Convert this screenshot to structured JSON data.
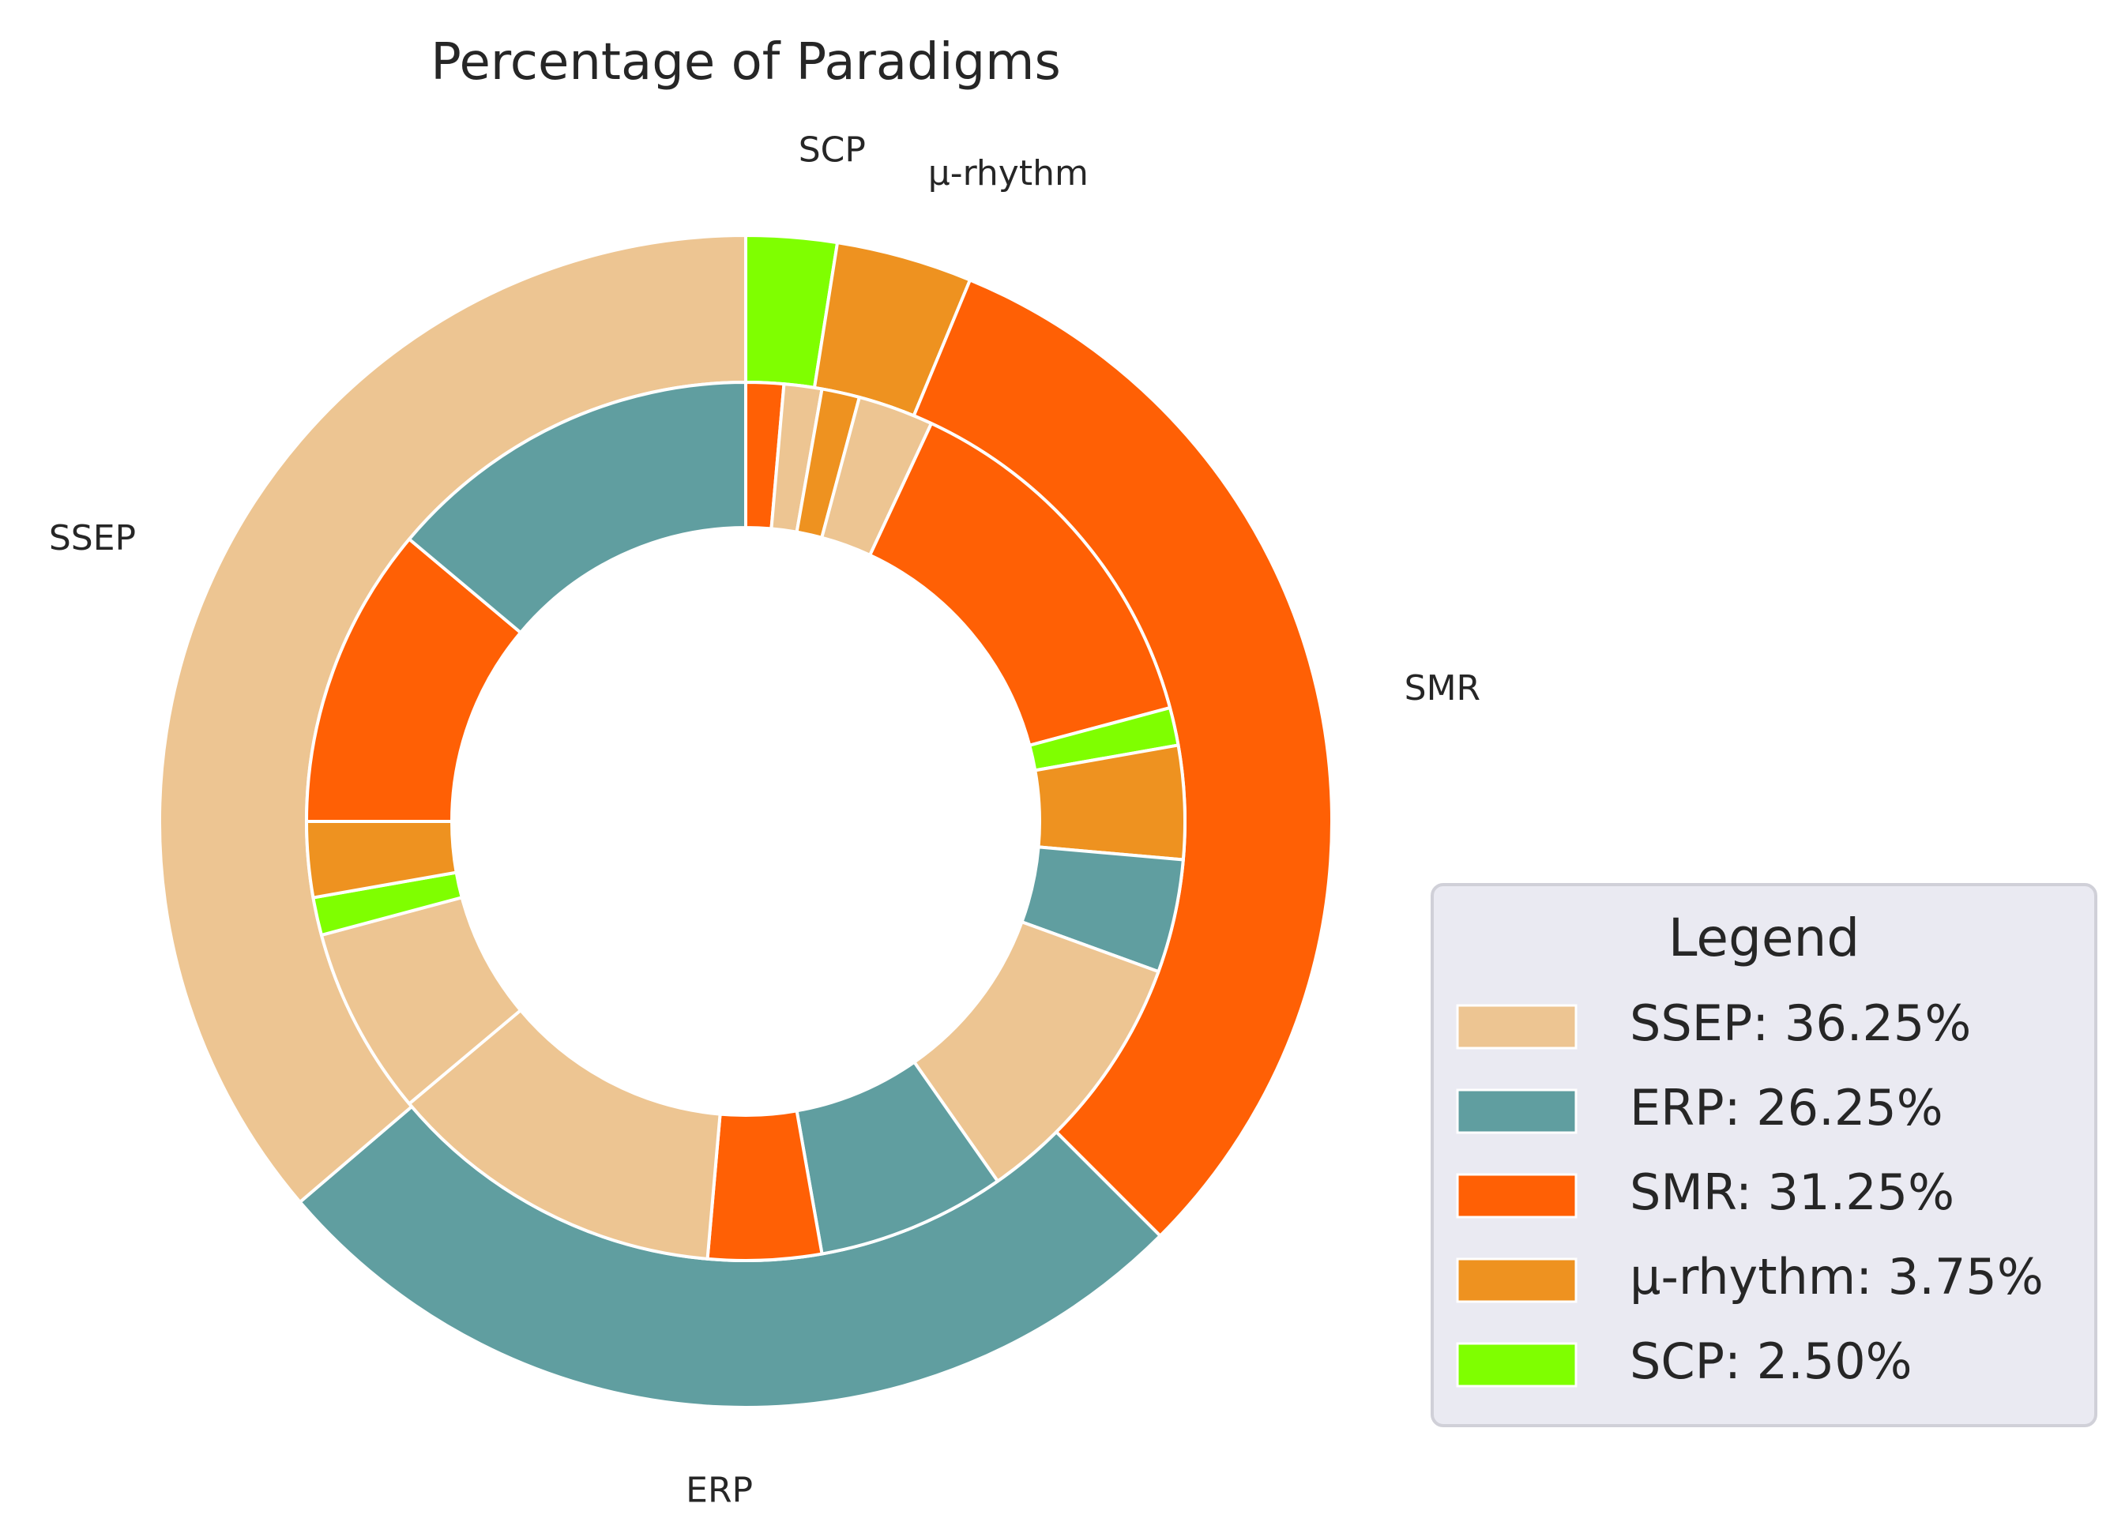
{
  "chart_data": {
    "type": "pie",
    "variant": "nested-donut",
    "title": "Percentage of Paradigms",
    "outer_ring": {
      "labels": [
        "SCP",
        "μ-rhythm",
        "SMR",
        "ERP",
        "SSEP"
      ],
      "values": [
        2.5,
        3.75,
        31.25,
        26.25,
        36.25
      ],
      "colors": [
        "#7fff00",
        "#ee9220",
        "#ff6005",
        "#609ea0",
        "#edc592"
      ]
    },
    "inner_ring": {
      "values": [
        1.25,
        1.25,
        1.25,
        2.5,
        12.5,
        1.25,
        3.75,
        3.75,
        8.75,
        6.25,
        3.75,
        11.25,
        6.25,
        1.25,
        2.5,
        10.0,
        12.5
      ],
      "colors": [
        "#ff6005",
        "#edc592",
        "#ee9220",
        "#edc592",
        "#ff6005",
        "#7fff00",
        "#ee9220",
        "#609ea0",
        "#edc592",
        "#609ea0",
        "#ff6005",
        "#edc592",
        "#edc592",
        "#7fff00",
        "#ee9220",
        "#ff6005",
        "#609ea0"
      ]
    },
    "legend": {
      "title": "Legend",
      "placement": "lower-right",
      "entries": [
        {
          "label": "SSEP: 36.25%",
          "color": "#edc592"
        },
        {
          "label": "ERP: 26.25%",
          "color": "#609ea0"
        },
        {
          "label": "SMR: 31.25%",
          "color": "#ff6005"
        },
        {
          "label": "μ-rhythm: 3.75%",
          "color": "#ee9220"
        },
        {
          "label": "SCP: 2.50%",
          "color": "#7fff00"
        }
      ]
    },
    "start": "top",
    "direction": "clockwise"
  }
}
